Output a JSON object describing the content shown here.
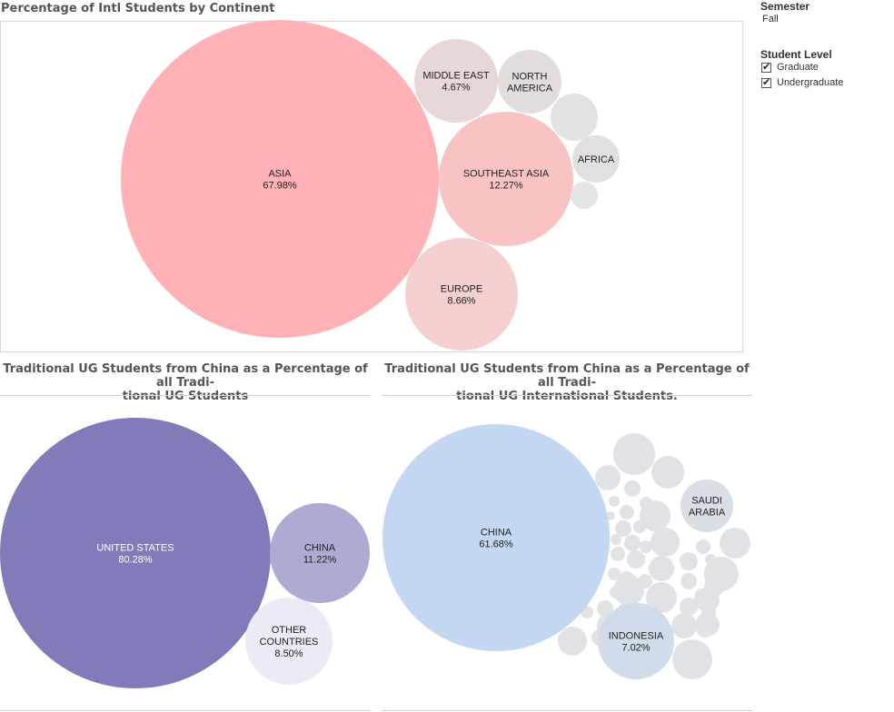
{
  "filters": {
    "semester": {
      "title": "Semester",
      "value": "Fall"
    },
    "student_level": {
      "title": "Student Level",
      "options": [
        {
          "label": "Graduate",
          "checked": true
        },
        {
          "label": "Undergraduate",
          "checked": true
        }
      ]
    }
  },
  "chart_data": [
    {
      "type": "bubble",
      "title": "Percentage of Intl Students by Continent",
      "bubbles": [
        {
          "label": [
            "ASIA"
          ],
          "value": "67.98%",
          "color": "#ffb1b5"
        },
        {
          "label": [
            "SOUTHEAST ASIA"
          ],
          "value": "12.27%",
          "color": "#f9c3c3"
        },
        {
          "label": [
            "EUROPE"
          ],
          "value": "8.66%",
          "color": "#f4cfcf"
        },
        {
          "label": [
            "MIDDLE EAST"
          ],
          "value": "4.67%",
          "color": "#e8d7d7"
        },
        {
          "label": [
            "NORTH",
            "AMERICA"
          ],
          "value": "",
          "color": "#e3dcdc"
        },
        {
          "label": [
            "AFRICA"
          ],
          "value": "",
          "color": "#e2dfdf"
        },
        {
          "label": [],
          "value": "",
          "color": "#e2e2e2"
        },
        {
          "label": [],
          "value": "",
          "color": "#e4e4e4"
        }
      ]
    },
    {
      "type": "bubble",
      "title": "Traditional UG Students from China as a Percentage of all Tradi-\ntional UG Students",
      "bubbles": [
        {
          "label": [
            "UNITED STATES"
          ],
          "value": "80.28%",
          "color": "#807cba",
          "text_color": "#ffffff"
        },
        {
          "label": [
            "CHINA"
          ],
          "value": "11.22%",
          "color": "#adabd4",
          "text_color": "#222222"
        },
        {
          "label": [
            "OTHER",
            "COUNTRIES"
          ],
          "value": "8.50%",
          "color": "#ebeaf5",
          "text_color": "#222222"
        }
      ]
    },
    {
      "type": "bubble",
      "title": "Traditional UG Students from China as a Percentage of all Tradi-\ntional UG International Students.",
      "bubbles": [
        {
          "label": [
            "CHINA"
          ],
          "value": "61.68%",
          "color": "#c4d7f2"
        },
        {
          "label": [
            "INDONESIA"
          ],
          "value": "7.02%",
          "color": "#d1dcea"
        },
        {
          "label": [
            "SAUDI",
            "ARABIA"
          ],
          "value": "",
          "color": "#d9dee5"
        }
      ],
      "unlabeled_bubble_color": "#e1e2e5"
    }
  ]
}
